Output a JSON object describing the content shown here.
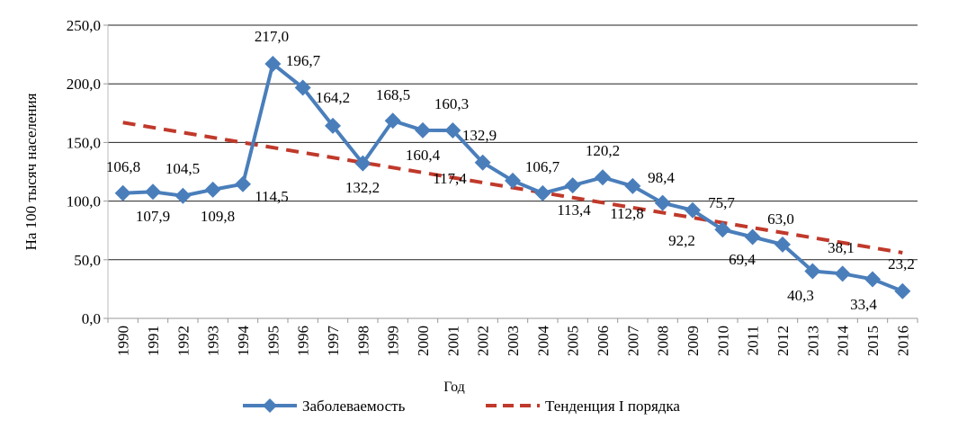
{
  "chart_data": {
    "type": "line",
    "title": "",
    "xlabel": "Год",
    "ylabel": "На 100 тысяч населения",
    "ylim": [
      0,
      250
    ],
    "yticks": [
      "0,0",
      "50,0",
      "100,0",
      "150,0",
      "200,0",
      "250,0"
    ],
    "grid": true,
    "legend_position": "bottom",
    "categories": [
      "1990",
      "1991",
      "1992",
      "1993",
      "1994",
      "1995",
      "1996",
      "1997",
      "1998",
      "1999",
      "2000",
      "2001",
      "2002",
      "2003",
      "2004",
      "2005",
      "2006",
      "2007",
      "2008",
      "2009",
      "2010",
      "2011",
      "2012",
      "2013",
      "2014",
      "2015",
      "2016"
    ],
    "series": [
      {
        "name": "Заболеваемость",
        "color": "#4a7ebb",
        "marker": "diamond",
        "values": [
          106.8,
          107.9,
          104.5,
          109.8,
          114.5,
          217.0,
          196.7,
          164.2,
          132.2,
          168.5,
          160.4,
          160.3,
          132.9,
          117.4,
          106.7,
          113.4,
          120.2,
          112.8,
          98.4,
          92.2,
          75.7,
          69.4,
          63.0,
          40.3,
          38.1,
          33.4,
          23.2
        ],
        "labels": [
          "106,8",
          "107,9",
          "104,5",
          "109,8",
          "114,5",
          "217,0",
          "196,7",
          "164,2",
          "132,2",
          "168,5",
          "160,4",
          "160,3",
          "132,9",
          "117,4",
          "106,7",
          "113,4",
          "120,2",
          "112,8",
          "98,4",
          "92,2",
          "75,7",
          "69,4",
          "63,0",
          "40,3",
          "38,1",
          "33,4",
          "23,2"
        ]
      },
      {
        "name": "Тенденция I порядка",
        "color": "#c0392b",
        "style": "dashed",
        "values_start_end": [
          167,
          56
        ]
      }
    ]
  }
}
